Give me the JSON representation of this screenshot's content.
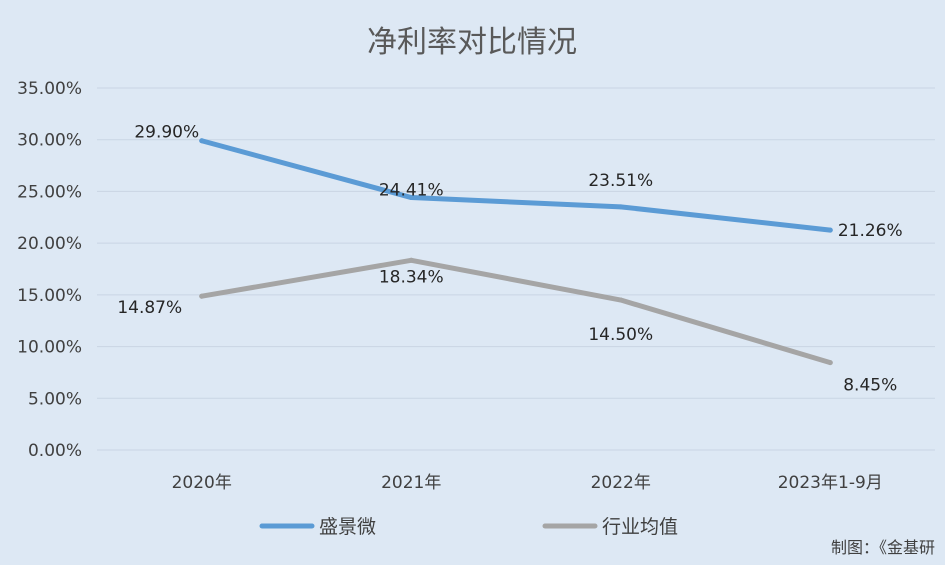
{
  "chart_data": {
    "type": "line",
    "title": "净利率对比情况",
    "categories": [
      "2020年",
      "2021年",
      "2022年",
      "2023年1-9月"
    ],
    "series": [
      {
        "name": "盛景微",
        "values": [
          29.9,
          24.41,
          23.51,
          21.26
        ],
        "labels": [
          "29.90%",
          "24.41%",
          "23.51%",
          "21.26%"
        ],
        "color": "#5b9bd5"
      },
      {
        "name": "行业均值",
        "values": [
          14.87,
          18.34,
          14.5,
          8.45
        ],
        "labels": [
          "14.87%",
          "18.34%",
          "14.50%",
          "8.45%"
        ],
        "color": "#a5a5a5"
      }
    ],
    "y_ticks": [
      "0.00%",
      "5.00%",
      "10.00%",
      "15.00%",
      "20.00%",
      "25.00%",
      "30.00%",
      "35.00%"
    ],
    "ylim": [
      0,
      35
    ],
    "grid": true,
    "legend_position": "bottom",
    "background_color": "#dde8f4",
    "gridline_color": "#c9d5e3"
  },
  "credit": "制图：《金基研"
}
